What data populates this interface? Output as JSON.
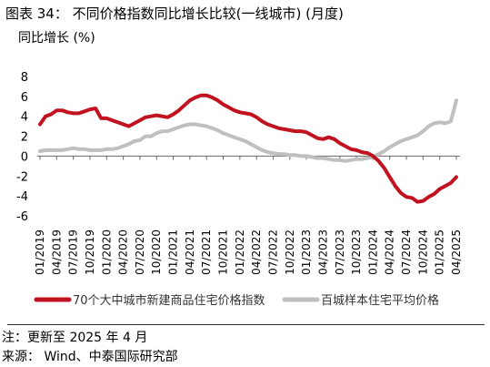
{
  "figure": {
    "title": "图表 34： 不同价格指数同比增长比较(一线城市) (月度)",
    "y_axis_title": "同比增长 (%)",
    "note": "注：更新至 2025 年 4 月",
    "source": "来源：  Wind、中泰国际研究部"
  },
  "chart_data": {
    "type": "line",
    "title": "图表 34： 不同价格指数同比增长比较(一线城市) (月度)",
    "ylabel": "同比增长 (%)",
    "ylim": [
      -6,
      8
    ],
    "yticks": [
      -6,
      -4,
      -2,
      0,
      2,
      4,
      6,
      8
    ],
    "grid": false,
    "legend_position": "bottom",
    "x_tick_labels": [
      "01/2019",
      "04/2019",
      "07/2019",
      "10/2019",
      "01/2020",
      "04/2020",
      "07/2020",
      "10/2020",
      "01/2021",
      "04/2021",
      "07/2021",
      "10/2021",
      "01/2022",
      "04/2022",
      "07/2022",
      "10/2022",
      "01/2023",
      "04/2023",
      "07/2023",
      "10/2023",
      "01/2024",
      "04/2024",
      "07/2024",
      "10/2024",
      "01/2025",
      "04/2025"
    ],
    "x_tick_index": [
      0,
      3,
      6,
      9,
      12,
      15,
      18,
      21,
      24,
      27,
      30,
      33,
      36,
      39,
      42,
      45,
      48,
      51,
      54,
      57,
      60,
      63,
      66,
      69,
      72,
      75
    ],
    "series": [
      {
        "name": "70个大中城市新建商品住宅价格指数",
        "color": "#C0131F",
        "values": [
          3.2,
          4.0,
          4.2,
          4.6,
          4.6,
          4.4,
          4.3,
          4.3,
          4.5,
          4.7,
          4.8,
          3.8,
          3.8,
          3.6,
          3.4,
          3.2,
          3.0,
          3.3,
          3.6,
          3.9,
          4.0,
          4.1,
          4.0,
          3.9,
          4.2,
          4.6,
          5.1,
          5.6,
          5.9,
          6.1,
          6.1,
          5.9,
          5.6,
          5.2,
          4.9,
          4.6,
          4.4,
          4.3,
          4.2,
          3.9,
          3.5,
          3.2,
          3.0,
          2.8,
          2.7,
          2.6,
          2.5,
          2.5,
          2.4,
          2.1,
          1.8,
          1.7,
          1.9,
          1.7,
          1.3,
          1.0,
          0.7,
          0.6,
          0.4,
          0.3,
          0.0,
          -0.5,
          -1.2,
          -2.1,
          -3.0,
          -3.7,
          -4.1,
          -4.2,
          -4.6,
          -4.5,
          -4.1,
          -3.8,
          -3.3,
          -3.0,
          -2.7,
          -2.1
        ]
      },
      {
        "name": "百城样本住宅平均价格",
        "color": "#BFBFBF",
        "values": [
          0.5,
          0.6,
          0.6,
          0.6,
          0.6,
          0.7,
          0.8,
          0.7,
          0.7,
          0.6,
          0.6,
          0.6,
          0.7,
          0.7,
          0.8,
          1.0,
          1.2,
          1.5,
          1.6,
          2.0,
          2.0,
          2.3,
          2.5,
          2.5,
          2.7,
          2.9,
          3.1,
          3.2,
          3.2,
          3.1,
          3.0,
          2.8,
          2.6,
          2.3,
          2.1,
          1.9,
          1.7,
          1.5,
          1.2,
          0.9,
          0.6,
          0.4,
          0.3,
          0.2,
          0.2,
          0.1,
          0.1,
          0.0,
          0.0,
          -0.1,
          -0.2,
          -0.2,
          -0.3,
          -0.4,
          -0.4,
          -0.5,
          -0.4,
          -0.3,
          -0.3,
          -0.2,
          -0.1,
          0.2,
          0.5,
          0.9,
          1.2,
          1.5,
          1.7,
          1.9,
          2.1,
          2.5,
          3.0,
          3.3,
          3.4,
          3.3,
          3.5,
          5.6
        ]
      }
    ]
  }
}
